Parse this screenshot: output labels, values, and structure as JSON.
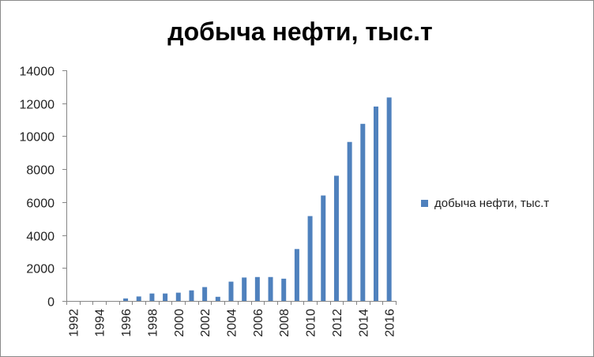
{
  "chart_data": {
    "type": "bar",
    "title": "добыча нефти, тыс.т",
    "categories": [
      "1992",
      "1993",
      "1994",
      "1995",
      "1996",
      "1997",
      "1998",
      "1999",
      "2000",
      "2001",
      "2002",
      "2003",
      "2004",
      "2005",
      "2006",
      "2007",
      "2008",
      "2009",
      "2010",
      "2011",
      "2012",
      "2013",
      "2014",
      "2015",
      "2016"
    ],
    "tick_labels": [
      "1992",
      "1994",
      "1996",
      "1998",
      "2000",
      "2002",
      "2004",
      "2006",
      "2008",
      "2010",
      "2012",
      "2014",
      "2016"
    ],
    "series": [
      {
        "name": "добыча нефти, тыс.т",
        "color": "#4f81bd",
        "values": [
          0,
          0,
          0,
          0,
          150,
          270,
          450,
          450,
          500,
          640,
          840,
          250,
          1170,
          1420,
          1450,
          1450,
          1350,
          3150,
          5150,
          6400,
          7600,
          9650,
          10750,
          11800,
          12350
        ]
      }
    ],
    "yticks": [
      "0",
      "2000",
      "4000",
      "6000",
      "8000",
      "10000",
      "12000",
      "14000"
    ],
    "ylim": [
      0,
      14000
    ],
    "xlabel": "",
    "ylabel": "",
    "grid": false,
    "legend": "right"
  }
}
